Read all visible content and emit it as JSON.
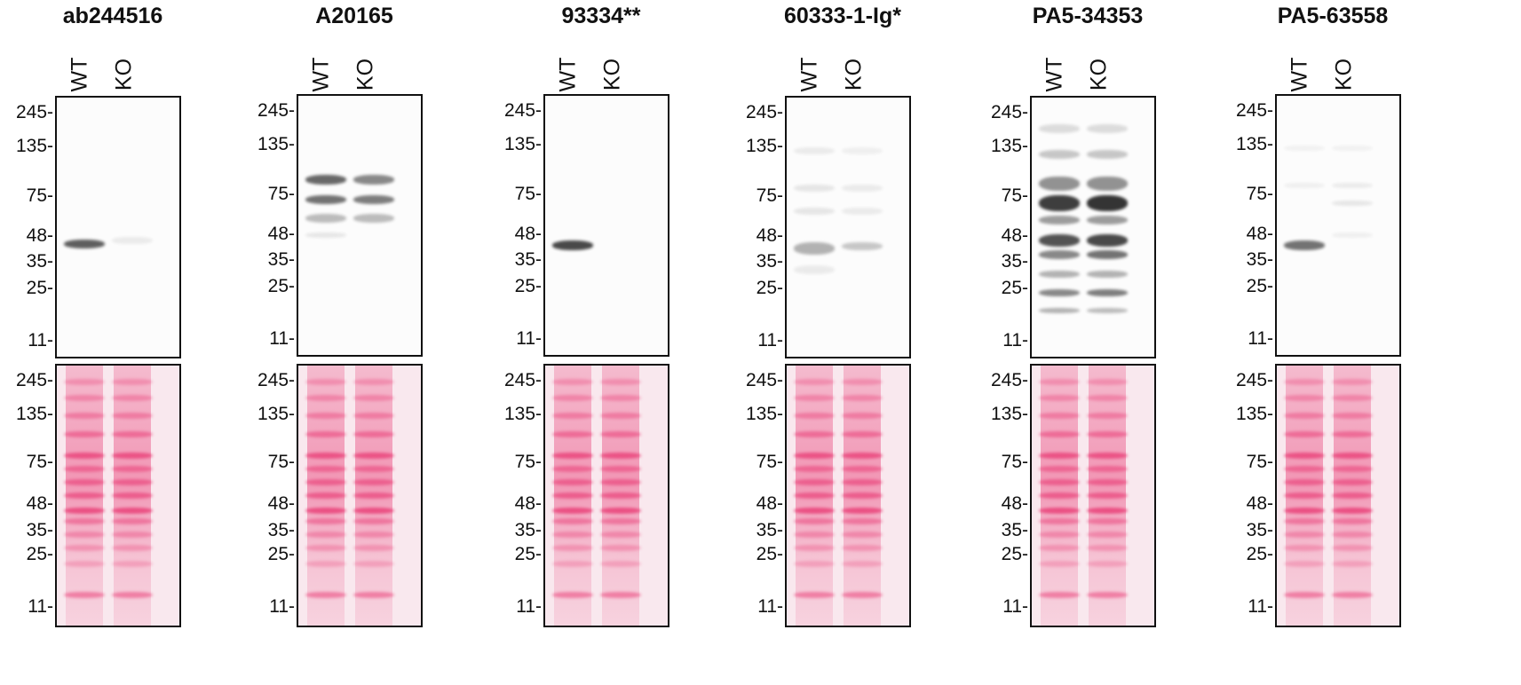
{
  "panels": [
    {
      "title": "ab244516"
    },
    {
      "title": "A20165"
    },
    {
      "title": "93334**"
    },
    {
      "title": "60333-1-Ig*"
    },
    {
      "title": "PA5-34353"
    },
    {
      "title": "PA5-63558"
    }
  ],
  "lanes": [
    "WT",
    "KO"
  ],
  "mw_markers": [
    "245-",
    "135-",
    "75-",
    "48-",
    "35-",
    "25-",
    "11-"
  ],
  "colors": {
    "band_dark": "#2a2a2a",
    "ponceau_stain": "#e8336f",
    "ponceau_bg": "#f9e8ee"
  }
}
